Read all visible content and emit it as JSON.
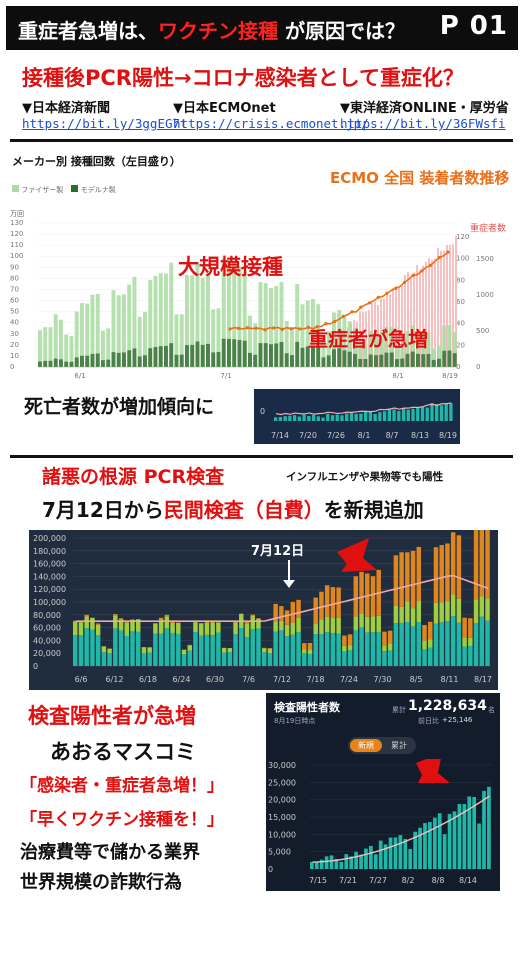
{
  "header": {
    "title_part1": "重症者急増は、",
    "title_red": "ワクチン接種",
    "title_part2": "が原因では？",
    "page_label": "P 01"
  },
  "headline1": "接種後PCR陽性→コロナ感染者として重症化？",
  "sources": [
    {
      "label": "▼日本経済新聞",
      "url": "https://bit.ly/3ggEG7t"
    },
    {
      "label": "▼日本ECMOnet",
      "url": "https://crisis.ecmonet.jp/"
    },
    {
      "label": "▼東洋経済ONLINE・厚労省",
      "url": "https://bit.ly/36FWsfi"
    }
  ],
  "chart1": {
    "title": "メーカー別 接種回数（左目盛り）",
    "legend": [
      "ファイザー製",
      "モデルナ製"
    ],
    "unit": "万回",
    "ecmo_title": "ECMO 全国 装着者数推移",
    "severe_label": "重症者数",
    "annotation_vaccination": "大規模接種",
    "annotation_severe": "重症者が急増",
    "y_left_ticks": [
      "130",
      "120",
      "110",
      "100",
      "90",
      "80",
      "70",
      "60",
      "50",
      "40",
      "30",
      "20",
      "10",
      "0"
    ],
    "y_mid_ticks": [
      "120",
      "100",
      "80",
      "60",
      "40",
      "20",
      "0"
    ],
    "y_right_ticks": [
      "1500",
      "1000",
      "500",
      "0"
    ],
    "x_ticks": [
      "6/1",
      "7/1",
      "8/1",
      "8/19"
    ]
  },
  "deaths": {
    "label": "死亡者数が増加傾向に",
    "zero": "0",
    "x_ticks": [
      "7/14",
      "7/20",
      "7/26",
      "8/1",
      "8/7",
      "8/13",
      "8/19"
    ]
  },
  "pcr": {
    "heading_red": "諸悪の根源 PCR検査",
    "heading_note": "インフルエンザや果物等でも陽性",
    "line2_black1": "7月12日から",
    "line2_red": "民間検査（自費）",
    "line2_black2": "を新規追加",
    "annotation": "7月12日",
    "y_ticks": [
      "200,000",
      "180,000",
      "160,000",
      "140,000",
      "120,000",
      "100,000",
      "80,000",
      "60,000",
      "40,000",
      "20,000",
      "0"
    ],
    "x_ticks": [
      "6/6",
      "6/12",
      "6/18",
      "6/24",
      "6/30",
      "7/6",
      "7/12",
      "7/18",
      "7/24",
      "7/30",
      "8/5",
      "8/11",
      "8/17"
    ]
  },
  "bottom": {
    "heading": "検査陽性者が急増",
    "media": "あおるマスコミ",
    "quote1": "「感染者・重症者急増！」",
    "quote2": "「早くワクチン接種を！」",
    "line1": "治療費等で儲かる業界",
    "line2": "世界規模の詐欺行為"
  },
  "positives": {
    "title": "検査陽性者数",
    "total_label": "累計",
    "total_value": "1,228,634",
    "total_unit": "名",
    "asof": "8月19日時点",
    "diff_label": "前日比",
    "diff_value": "+25,146",
    "tab_new": "新規",
    "tab_cumulative": "累計",
    "y_ticks": [
      "30,000",
      "25,000",
      "20,000",
      "15,000",
      "10,000",
      "5,000",
      "0"
    ],
    "x_ticks": [
      "7/15",
      "7/21",
      "7/27",
      "8/2",
      "8/8",
      "8/14"
    ]
  },
  "colors": {
    "accent_red": "#e01010",
    "pfizer": "#a8dca0",
    "moderna": "#2e6b2e",
    "ecmo_line": "#e8701a",
    "teal": "#1fb8a8",
    "panel_dark": "#1a2b48"
  }
}
